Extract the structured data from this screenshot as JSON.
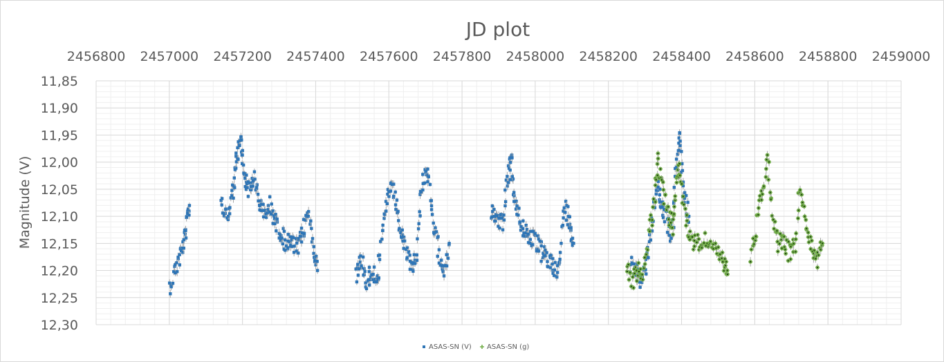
{
  "chart_data": {
    "type": "scatter",
    "title": "JD plot",
    "xlabel": "",
    "ylabel": "Magnitude (V)",
    "x_axis_position": "top",
    "y_axis_reversed": true,
    "xlim": [
      2456800,
      2459000
    ],
    "ylim": [
      11.85,
      12.3
    ],
    "x_ticks": [
      "2456800",
      "2457000",
      "2457200",
      "2457400",
      "2457600",
      "2457800",
      "2458000",
      "2458200",
      "2458400",
      "2458600",
      "2458800",
      "2459000"
    ],
    "y_ticks": [
      "11,85",
      "11,90",
      "11,95",
      "12,00",
      "12,05",
      "12,10",
      "12,15",
      "12,20",
      "12,25",
      "12,30"
    ],
    "grid": true,
    "legend_position": "bottom",
    "series": [
      {
        "name": "ASAS-SN (V)",
        "color": "#2e75b6",
        "marker": "square",
        "segments": [
          {
            "x": [
              2457000,
              2457020,
              2457035,
              2457045,
              2457055
            ],
            "y": [
              12.23,
              12.19,
              12.16,
              12.13,
              12.08
            ]
          },
          {
            "x": [
              2457140,
              2457160,
              2457175,
              2457185,
              2457195,
              2457205,
              2457215,
              2457230,
              2457245,
              2457260,
              2457275,
              2457290,
              2457305,
              2457320,
              2457335,
              2457350,
              2457365,
              2457380,
              2457395,
              2457405
            ],
            "y": [
              12.08,
              12.1,
              12.05,
              11.99,
              11.96,
              12.02,
              12.05,
              12.03,
              12.07,
              12.1,
              12.08,
              12.11,
              12.13,
              12.15,
              12.15,
              12.16,
              12.13,
              12.09,
              12.16,
              12.2
            ]
          },
          {
            "x": [
              2457510,
              2457525,
              2457540,
              2457555,
              2457570,
              2457585,
              2457600,
              2457615,
              2457630,
              2457645,
              2457660,
              2457675,
              2457690,
              2457705,
              2457720,
              2457735,
              2457750,
              2457765
            ],
            "y": [
              12.21,
              12.18,
              12.22,
              12.2,
              12.21,
              12.12,
              12.05,
              12.06,
              12.12,
              12.16,
              12.19,
              12.18,
              12.04,
              12.01,
              12.11,
              12.16,
              12.2,
              12.15
            ]
          },
          {
            "x": [
              2457880,
              2457895,
              2457910,
              2457925,
              2457935,
              2457945,
              2457960,
              2457975,
              2457990,
              2458005,
              2458020,
              2458035,
              2458050,
              2458065,
              2458080,
              2458095,
              2458105
            ],
            "y": [
              12.09,
              12.1,
              12.11,
              12.03,
              12.0,
              12.08,
              12.11,
              12.13,
              12.14,
              12.15,
              12.17,
              12.18,
              12.19,
              12.2,
              12.08,
              12.11,
              12.15
            ]
          },
          {
            "x": [
              2458260,
              2458275,
              2458290,
              2458305,
              2458320,
              2458335,
              2458345,
              2458360,
              2458375,
              2458385,
              2458395,
              2458405,
              2458420
            ],
            "y": [
              12.19,
              12.2,
              12.22,
              12.19,
              12.1,
              12.04,
              12.08,
              12.11,
              12.14,
              12.0,
              11.95,
              12.06,
              12.1
            ]
          }
        ]
      },
      {
        "name": "ASAS-SN (g)",
        "color": "#70ad47",
        "marker": "star",
        "segments": [
          {
            "x": [
              2458250,
              2458265,
              2458280,
              2458295,
              2458310,
              2458325,
              2458335,
              2458350,
              2458365,
              2458375,
              2458385,
              2458395,
              2458410,
              2458425,
              2458440,
              2458460,
              2458480,
              2458500,
              2458515,
              2458525
            ],
            "y": [
              12.19,
              12.22,
              12.2,
              12.21,
              12.14,
              12.07,
              12.0,
              12.06,
              12.1,
              12.12,
              12.04,
              12.01,
              12.1,
              12.14,
              12.15,
              12.14,
              12.16,
              12.17,
              12.19,
              12.2
            ]
          },
          {
            "x": [
              2458590,
              2458605,
              2458620,
              2458635,
              2458650,
              2458665,
              2458680,
              2458695,
              2458710,
              2458725,
              2458740,
              2458755,
              2458770,
              2458785
            ],
            "y": [
              12.17,
              12.12,
              12.05,
              12.0,
              12.1,
              12.15,
              12.14,
              12.17,
              12.15,
              12.04,
              12.13,
              12.16,
              12.18,
              12.15
            ]
          }
        ]
      }
    ]
  }
}
